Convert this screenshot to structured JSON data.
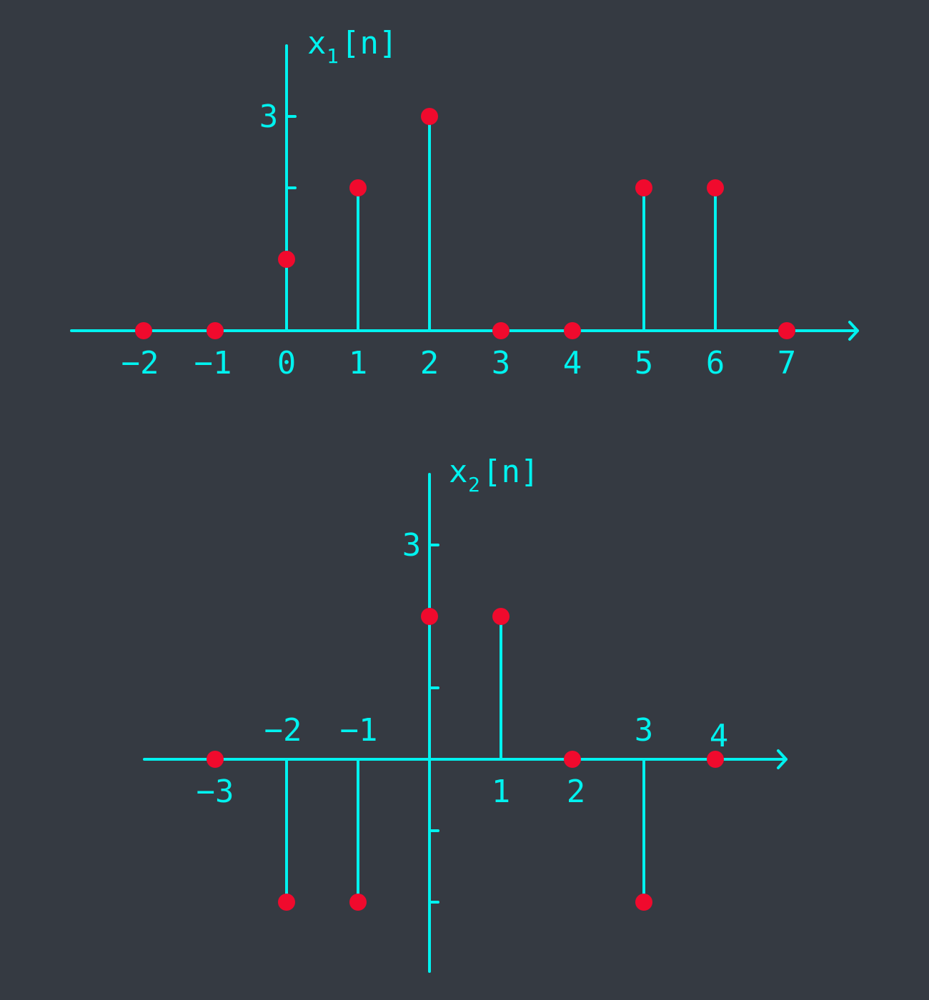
{
  "colors": {
    "background": "#353a42",
    "axis": "#00f2ef",
    "sample_marker": "#f00a2d"
  },
  "chart_data": [
    {
      "type": "stem",
      "ylabel": "x₁[n]",
      "ylabel_base": "x",
      "ylabel_sub": "1",
      "ylabel_suffix": "[n]",
      "x": [
        -2,
        -1,
        0,
        1,
        2,
        3,
        4,
        5,
        6,
        7
      ],
      "values": [
        0,
        0,
        1,
        2,
        3,
        0,
        0,
        2,
        2,
        0
      ],
      "tick_labels": [
        "−2",
        "−1",
        "0",
        "1",
        "2",
        "3",
        "4",
        "5",
        "6",
        "7"
      ],
      "ytick_values": [
        2,
        3
      ],
      "ytick_labels": [
        "",
        "3"
      ],
      "grid": false
    },
    {
      "type": "stem",
      "ylabel": "x₂[n]",
      "ylabel_base": "x",
      "ylabel_sub": "2",
      "ylabel_suffix": "[n]",
      "x": [
        -3,
        -2,
        -1,
        0,
        1,
        2,
        3,
        4
      ],
      "values": [
        0,
        -2,
        -2,
        2,
        2,
        0,
        -2,
        0
      ],
      "tick_labels": [
        "−3",
        "−2",
        "−1",
        "",
        "1",
        "2",
        "3",
        "4"
      ],
      "ytick_values": [
        3,
        1,
        -1,
        -2
      ],
      "ytick_labels": [
        "3",
        "",
        "",
        ""
      ],
      "grid": false
    }
  ]
}
